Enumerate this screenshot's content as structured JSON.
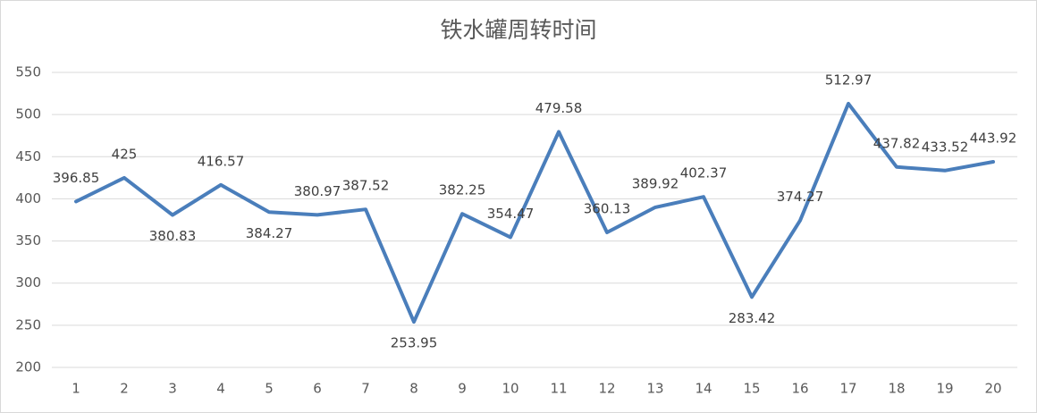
{
  "chart_data": {
    "type": "line",
    "title": "铁水罐周转时间",
    "categories": [
      "1",
      "2",
      "3",
      "4",
      "5",
      "6",
      "7",
      "8",
      "9",
      "10",
      "11",
      "12",
      "13",
      "14",
      "15",
      "16",
      "17",
      "18",
      "19",
      "20"
    ],
    "values": [
      396.85,
      425,
      380.83,
      416.57,
      384.27,
      380.97,
      387.52,
      253.95,
      382.25,
      354.47,
      479.58,
      360.13,
      389.92,
      402.37,
      283.42,
      374.27,
      512.97,
      437.82,
      433.52,
      443.92
    ],
    "color": "#4a7ebb",
    "ylim": [
      200,
      550
    ],
    "yticks": [
      200,
      250,
      300,
      350,
      400,
      450,
      500,
      550
    ],
    "grid": true
  }
}
